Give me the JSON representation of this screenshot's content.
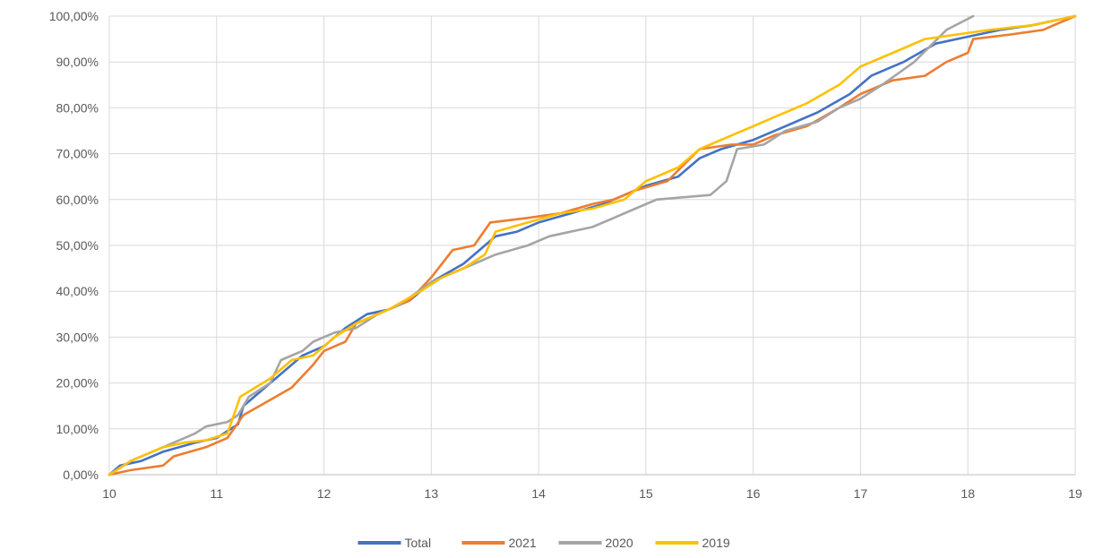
{
  "chart_data": {
    "type": "line",
    "title": "",
    "xlabel": "",
    "ylabel": "",
    "xlim": [
      10,
      19
    ],
    "ylim": [
      0,
      100
    ],
    "x_ticks": [
      "10",
      "11",
      "12",
      "13",
      "14",
      "15",
      "16",
      "17",
      "18",
      "19"
    ],
    "y_ticks": [
      "0,00%",
      "10,00%",
      "20,00%",
      "30,00%",
      "40,00%",
      "50,00%",
      "60,00%",
      "70,00%",
      "80,00%",
      "90,00%",
      "100,00%"
    ],
    "grid": true,
    "legend_position": "bottom",
    "series": [
      {
        "name": "Total",
        "color": "#4472C4",
        "points": [
          [
            10.0,
            0
          ],
          [
            10.1,
            2
          ],
          [
            10.3,
            3
          ],
          [
            10.5,
            5
          ],
          [
            10.8,
            7
          ],
          [
            11.0,
            8
          ],
          [
            11.2,
            11
          ],
          [
            11.25,
            15
          ],
          [
            11.5,
            20
          ],
          [
            11.8,
            26
          ],
          [
            12.0,
            28
          ],
          [
            12.2,
            32
          ],
          [
            12.4,
            35
          ],
          [
            12.6,
            36
          ],
          [
            12.8,
            38
          ],
          [
            13.0,
            42
          ],
          [
            13.3,
            46
          ],
          [
            13.6,
            52
          ],
          [
            13.8,
            53
          ],
          [
            14.0,
            55
          ],
          [
            14.3,
            57
          ],
          [
            14.6,
            59
          ],
          [
            14.8,
            61
          ],
          [
            15.0,
            63
          ],
          [
            15.3,
            65
          ],
          [
            15.5,
            69
          ],
          [
            15.7,
            71
          ],
          [
            16.0,
            73
          ],
          [
            16.3,
            76
          ],
          [
            16.6,
            79
          ],
          [
            16.9,
            83
          ],
          [
            17.1,
            87
          ],
          [
            17.4,
            90
          ],
          [
            17.7,
            94
          ],
          [
            18.0,
            95.5
          ],
          [
            18.3,
            97
          ],
          [
            18.6,
            98
          ],
          [
            19.0,
            100
          ]
        ]
      },
      {
        "name": "2021",
        "color": "#ED7D31",
        "points": [
          [
            10.0,
            0
          ],
          [
            10.2,
            1
          ],
          [
            10.5,
            2
          ],
          [
            10.6,
            4
          ],
          [
            10.9,
            6
          ],
          [
            11.1,
            8
          ],
          [
            11.25,
            13
          ],
          [
            11.4,
            15
          ],
          [
            11.55,
            17
          ],
          [
            11.7,
            19
          ],
          [
            11.9,
            24
          ],
          [
            12.0,
            27
          ],
          [
            12.2,
            29
          ],
          [
            12.3,
            33
          ],
          [
            12.5,
            35
          ],
          [
            12.8,
            38
          ],
          [
            13.0,
            43
          ],
          [
            13.2,
            49
          ],
          [
            13.4,
            50
          ],
          [
            13.55,
            55
          ],
          [
            13.9,
            56
          ],
          [
            14.2,
            57
          ],
          [
            14.5,
            59
          ],
          [
            14.7,
            60
          ],
          [
            14.9,
            62
          ],
          [
            15.2,
            64
          ],
          [
            15.5,
            71
          ],
          [
            15.8,
            72
          ],
          [
            16.0,
            72
          ],
          [
            16.2,
            74
          ],
          [
            16.5,
            76
          ],
          [
            16.8,
            80
          ],
          [
            17.0,
            83
          ],
          [
            17.3,
            86
          ],
          [
            17.6,
            87
          ],
          [
            17.8,
            90
          ],
          [
            18.0,
            92
          ],
          [
            18.05,
            95
          ],
          [
            18.4,
            96
          ],
          [
            18.7,
            97
          ],
          [
            18.8,
            98
          ],
          [
            19.0,
            100
          ]
        ]
      },
      {
        "name": "2020",
        "color": "#A5A5A5",
        "points": [
          [
            10.0,
            0
          ],
          [
            10.2,
            3
          ],
          [
            10.4,
            5
          ],
          [
            10.6,
            7
          ],
          [
            10.8,
            9
          ],
          [
            10.9,
            10.5
          ],
          [
            11.1,
            11.5
          ],
          [
            11.2,
            13
          ],
          [
            11.3,
            17
          ],
          [
            11.5,
            20
          ],
          [
            11.6,
            25
          ],
          [
            11.8,
            27
          ],
          [
            11.9,
            29
          ],
          [
            12.1,
            31
          ],
          [
            12.3,
            32
          ],
          [
            12.5,
            35
          ],
          [
            12.7,
            37
          ],
          [
            13.0,
            42
          ],
          [
            13.2,
            44
          ],
          [
            13.4,
            46
          ],
          [
            13.6,
            48
          ],
          [
            13.9,
            50
          ],
          [
            14.1,
            52
          ],
          [
            14.5,
            54
          ],
          [
            14.7,
            56
          ],
          [
            14.9,
            58
          ],
          [
            15.1,
            60
          ],
          [
            15.6,
            61
          ],
          [
            15.75,
            64
          ],
          [
            15.85,
            71
          ],
          [
            16.1,
            72
          ],
          [
            16.3,
            75
          ],
          [
            16.6,
            77
          ],
          [
            16.8,
            80
          ],
          [
            17.0,
            82
          ],
          [
            17.2,
            85
          ],
          [
            17.5,
            90
          ],
          [
            17.8,
            97
          ],
          [
            18.05,
            100
          ]
        ]
      },
      {
        "name": "2019",
        "color": "#FFC000",
        "points": [
          [
            10.0,
            0
          ],
          [
            10.2,
            3
          ],
          [
            10.5,
            6
          ],
          [
            10.7,
            7
          ],
          [
            10.9,
            7.5
          ],
          [
            11.1,
            9
          ],
          [
            11.22,
            17
          ],
          [
            11.5,
            21
          ],
          [
            11.7,
            25
          ],
          [
            11.9,
            26
          ],
          [
            12.1,
            30
          ],
          [
            12.3,
            33
          ],
          [
            12.6,
            36
          ],
          [
            12.9,
            40
          ],
          [
            13.1,
            43
          ],
          [
            13.3,
            45
          ],
          [
            13.5,
            48
          ],
          [
            13.6,
            53
          ],
          [
            13.9,
            55
          ],
          [
            14.2,
            57
          ],
          [
            14.5,
            58
          ],
          [
            14.8,
            60
          ],
          [
            15.0,
            64
          ],
          [
            15.3,
            67
          ],
          [
            15.5,
            71
          ],
          [
            15.8,
            74
          ],
          [
            16.0,
            76
          ],
          [
            16.2,
            78
          ],
          [
            16.5,
            81
          ],
          [
            16.8,
            85
          ],
          [
            17.0,
            89
          ],
          [
            17.3,
            92
          ],
          [
            17.6,
            95
          ],
          [
            17.9,
            96
          ],
          [
            18.2,
            97
          ],
          [
            18.6,
            98
          ],
          [
            19.0,
            100
          ]
        ]
      }
    ]
  }
}
